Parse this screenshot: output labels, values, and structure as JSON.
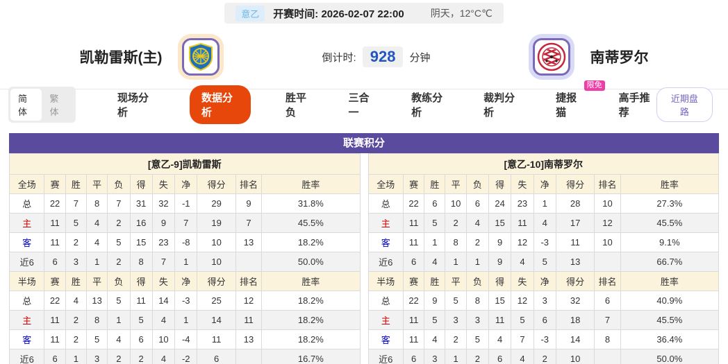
{
  "match_header": {
    "league": "意乙",
    "kickoff_label": "开赛时间:",
    "kickoff_time": "2026-02-07 22:00",
    "weather": "阴天，12°C℃",
    "home_team": "凯勒雷斯(主)",
    "away_team": "南蒂罗尔",
    "countdown_label": "倒计时:",
    "countdown_value": "928",
    "countdown_unit": "分钟"
  },
  "nav": {
    "lang_simplified": "简体",
    "lang_traditional": "繁体",
    "tabs": [
      {
        "label": "现场分析",
        "active": false
      },
      {
        "label": "数据分析",
        "active": true
      },
      {
        "label": "胜平负",
        "active": false
      },
      {
        "label": "三合一",
        "active": false
      },
      {
        "label": "教练分析",
        "active": false
      },
      {
        "label": "裁判分析",
        "active": false
      },
      {
        "label": "捷报猫",
        "active": false,
        "badge": "限免"
      },
      {
        "label": "高手推荐",
        "active": false
      }
    ],
    "recent_button": "近期盘路"
  },
  "league_table": {
    "title": "联赛积分",
    "full_columns": [
      "全场",
      "赛",
      "胜",
      "平",
      "负",
      "得",
      "失",
      "净",
      "得分",
      "排名",
      "胜率"
    ],
    "half_columns": [
      "半场",
      "赛",
      "胜",
      "平",
      "负",
      "得",
      "失",
      "净",
      "得分",
      "排名",
      "胜率"
    ],
    "teams": [
      {
        "section_title": "[意乙-9]凯勒雷斯",
        "full_rows": [
          {
            "label": "总",
            "type": "total",
            "cells": [
              "22",
              "7",
              "8",
              "7",
              "31",
              "32",
              "-1",
              "29",
              "9",
              "31.8%"
            ]
          },
          {
            "label": "主",
            "type": "home",
            "cells": [
              "11",
              "5",
              "4",
              "2",
              "16",
              "9",
              "7",
              "19",
              "7",
              "45.5%"
            ]
          },
          {
            "label": "客",
            "type": "away",
            "cells": [
              "11",
              "2",
              "4",
              "5",
              "15",
              "23",
              "-8",
              "10",
              "13",
              "18.2%"
            ]
          },
          {
            "label": "近6",
            "type": "recent",
            "cells": [
              "6",
              "3",
              "1",
              "2",
              "8",
              "7",
              "1",
              "10",
              "",
              "50.0%"
            ]
          }
        ],
        "half_rows": [
          {
            "label": "总",
            "type": "total",
            "cells": [
              "22",
              "4",
              "13",
              "5",
              "11",
              "14",
              "-3",
              "25",
              "12",
              "18.2%"
            ]
          },
          {
            "label": "主",
            "type": "home",
            "cells": [
              "11",
              "2",
              "8",
              "1",
              "5",
              "4",
              "1",
              "14",
              "11",
              "18.2%"
            ]
          },
          {
            "label": "客",
            "type": "away",
            "cells": [
              "11",
              "2",
              "5",
              "4",
              "6",
              "10",
              "-4",
              "11",
              "13",
              "18.2%"
            ]
          },
          {
            "label": "近6",
            "type": "recent",
            "cells": [
              "6",
              "1",
              "3",
              "2",
              "2",
              "4",
              "-2",
              "6",
              "",
              "16.7%"
            ]
          }
        ]
      },
      {
        "section_title": "[意乙-10]南蒂罗尔",
        "full_rows": [
          {
            "label": "总",
            "type": "total",
            "cells": [
              "22",
              "6",
              "10",
              "6",
              "24",
              "23",
              "1",
              "28",
              "10",
              "27.3%"
            ]
          },
          {
            "label": "主",
            "type": "home",
            "cells": [
              "11",
              "5",
              "2",
              "4",
              "15",
              "11",
              "4",
              "17",
              "12",
              "45.5%"
            ]
          },
          {
            "label": "客",
            "type": "away",
            "cells": [
              "11",
              "1",
              "8",
              "2",
              "9",
              "12",
              "-3",
              "11",
              "10",
              "9.1%"
            ]
          },
          {
            "label": "近6",
            "type": "recent",
            "cells": [
              "6",
              "4",
              "1",
              "1",
              "9",
              "4",
              "5",
              "13",
              "",
              "66.7%"
            ]
          }
        ],
        "half_rows": [
          {
            "label": "总",
            "type": "total",
            "cells": [
              "22",
              "9",
              "5",
              "8",
              "15",
              "12",
              "3",
              "32",
              "6",
              "40.9%"
            ]
          },
          {
            "label": "主",
            "type": "home",
            "cells": [
              "11",
              "5",
              "3",
              "3",
              "11",
              "5",
              "6",
              "18",
              "7",
              "45.5%"
            ]
          },
          {
            "label": "客",
            "type": "away",
            "cells": [
              "11",
              "4",
              "2",
              "5",
              "4",
              "7",
              "-3",
              "14",
              "8",
              "36.4%"
            ]
          },
          {
            "label": "近6",
            "type": "recent",
            "cells": [
              "6",
              "3",
              "1",
              "2",
              "6",
              "4",
              "2",
              "10",
              "",
              "50.0%"
            ]
          }
        ]
      }
    ]
  },
  "colors": {
    "accent_purple": "#5a4b9e",
    "nav_active_orange": "#e8470b",
    "badge_pink": "#ef3da7",
    "cream_header": "#fcf3dd",
    "alt_row_gray": "#f2f2f2",
    "home_red": "#cc0000",
    "away_blue": "#0000cd",
    "countdown_blue": "#2155c0",
    "league_badge_blue": "#6fb4e4"
  }
}
